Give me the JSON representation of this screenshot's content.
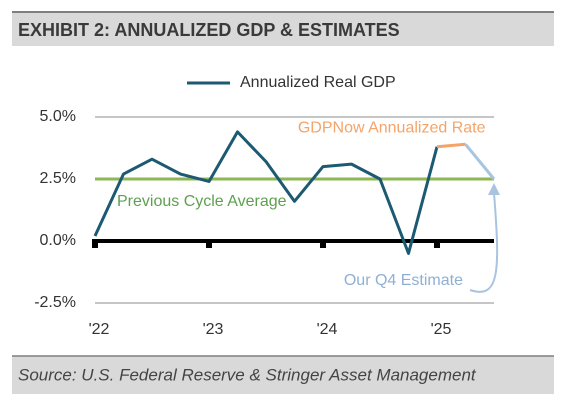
{
  "chart_data": {
    "type": "line",
    "title": "EXHIBIT 2: ANNUALIZED GDP & ESTIMATES",
    "source": "Source: U.S. Federal Reserve & Stringer Asset Management",
    "categories": [
      "'22",
      null,
      null,
      null,
      "'23",
      null,
      null,
      null,
      "'24",
      null,
      null,
      null,
      "'25",
      null,
      null
    ],
    "series": [
      {
        "name": "Annualized Real GDP",
        "color": "#1b5a72",
        "values": [
          0.2,
          2.7,
          3.3,
          2.7,
          2.4,
          4.4,
          3.2,
          1.6,
          3.0,
          3.1,
          2.5,
          -0.5,
          3.8,
          null,
          null
        ]
      },
      {
        "name": "GDPNow Annualized Rate",
        "color": "#f4a46a",
        "values": [
          null,
          null,
          null,
          null,
          null,
          null,
          null,
          null,
          null,
          null,
          null,
          null,
          3.8,
          3.9,
          null
        ]
      },
      {
        "name": "Our Q4 Estimate",
        "color": "#a9c4e0",
        "values": [
          null,
          null,
          null,
          null,
          null,
          null,
          null,
          null,
          null,
          null,
          null,
          null,
          null,
          3.9,
          2.5
        ]
      }
    ],
    "reference_lines": [
      {
        "value": 2.5,
        "label": "Previous Cycle Average",
        "color": "#8db654"
      }
    ],
    "ylim": [
      -2.5,
      5
    ],
    "yticks": [
      {
        "value": -2.5,
        "label": "-2.5%"
      },
      {
        "value": 0,
        "label": "0.0%"
      },
      {
        "value": 2.5,
        "label": "2.5%"
      },
      {
        "value": 5,
        "label": "5.0%"
      }
    ],
    "grid": true
  }
}
